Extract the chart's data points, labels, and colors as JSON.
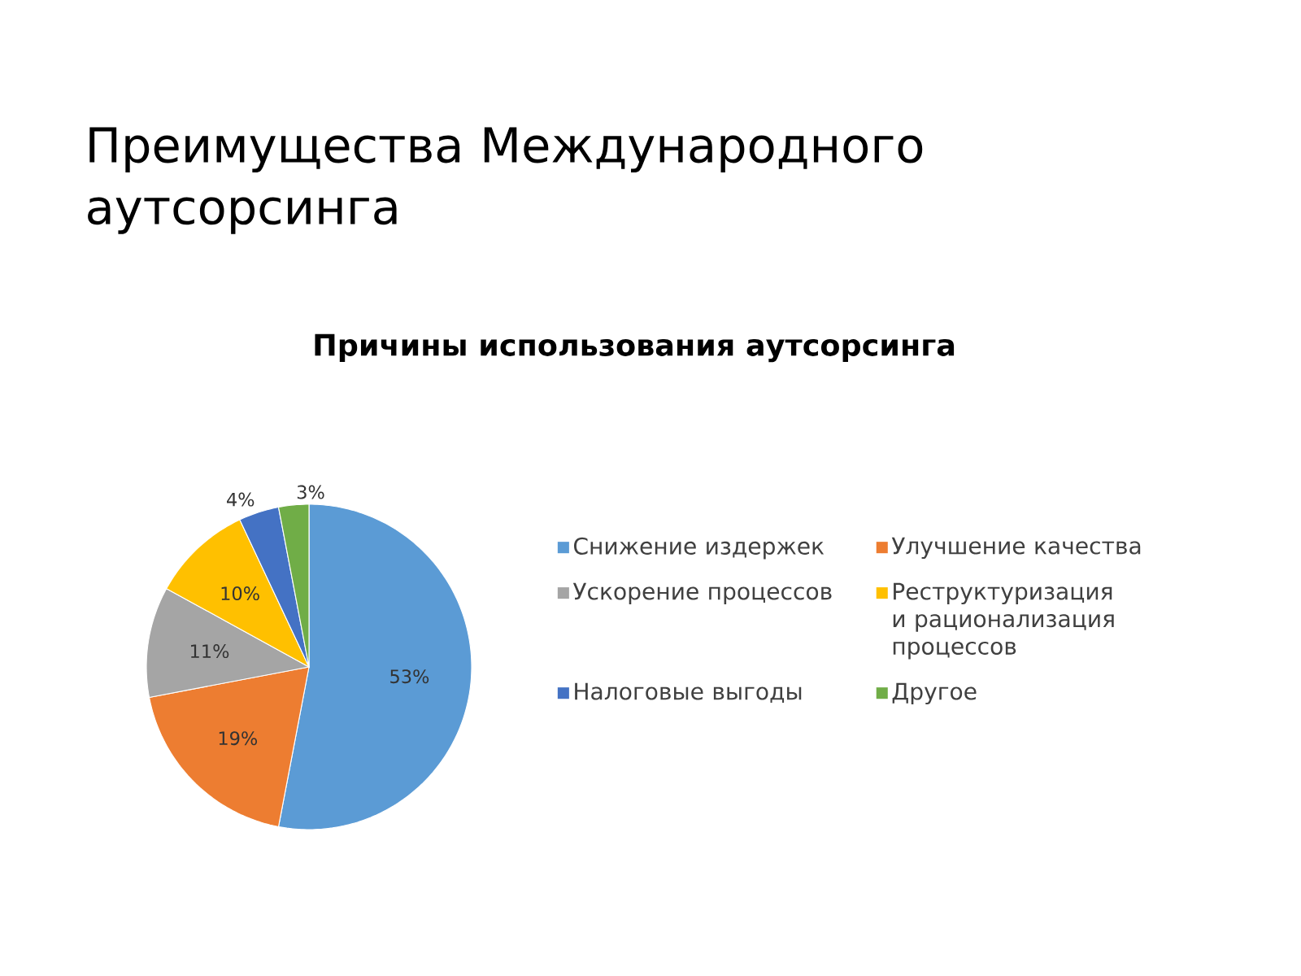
{
  "chart_data": {
    "type": "pie",
    "title": "Преимущества Международного аутсорсинга",
    "subtitle": "Причины использования аутсорсинга",
    "categories": [
      "Снижение издержек",
      "Улучшение качества",
      "Ускорение процессов",
      "Реструктуризация и рационализация процессов",
      "Налоговые выгоды",
      "Другое"
    ],
    "values": [
      53,
      19,
      11,
      10,
      4,
      3
    ],
    "colors": [
      "#5b9bd5",
      "#ed7d31",
      "#a5a5a5",
      "#ffc000",
      "#4472c4",
      "#70ad47"
    ],
    "value_labels": [
      "53%",
      "19%",
      "11%",
      "10%",
      "4%",
      "3%"
    ],
    "legend": "right"
  }
}
